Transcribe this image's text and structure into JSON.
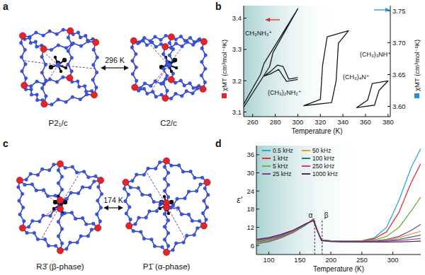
{
  "panel_labels": [
    "a",
    "b",
    "c",
    "d"
  ],
  "structures": [
    {
      "left": "P2₁/c",
      "right": "C2/c",
      "transition": "296 K"
    },
    {
      "left": "R3̄ (β-phase)",
      "right": "P1̄ (α-phase)",
      "transition": "174 K"
    }
  ],
  "chart_data": [
    {
      "type": "line",
      "x_label": "Temperature (K)",
      "y_label": "χMT (cm³mol⁻¹K)",
      "y2_label": "χMT (cm³mol⁻¹K)",
      "xlim": [
        252,
        382
      ],
      "xticks": [
        260,
        280,
        300,
        320,
        340,
        360,
        380
      ],
      "ylim": [
        3.085,
        3.44
      ],
      "yticks": [
        3.1,
        3.2,
        3.3,
        3.4
      ],
      "y2lim": [
        3.584,
        3.758
      ],
      "y2ticks": [
        {
          "value": 3.6,
          "label": "3.60"
        },
        {
          "value": 3.65,
          "label": "3.65"
        },
        {
          "value": 3.7,
          "label": "3.70"
        },
        {
          "value": 3.75,
          "label": "3.75"
        }
      ],
      "series": [
        {
          "name": "CH₃NH₃⁺",
          "color": "#1a1a1a",
          "x": [
            252,
            275,
            278,
            300,
            270,
            267,
            252
          ],
          "values": [
            3.115,
            3.245,
            3.29,
            3.43,
            3.255,
            3.22,
            3.125
          ]
        },
        {
          "name": "(CH₃)₂NH₂⁺",
          "color": "#1a1a1a",
          "x": [
            300,
            292,
            287,
            282,
            276,
            270,
            276,
            283,
            290,
            300
          ],
          "values": [
            3.21,
            3.205,
            3.245,
            3.25,
            3.23,
            3.215,
            3.222,
            3.236,
            3.198,
            3.204
          ]
        },
        {
          "name": "(CH₃)₄N⁺",
          "color": "#1a1a1a",
          "x": [
            305,
            330,
            334,
            336,
            345,
            326,
            322,
            320,
            305
          ],
          "values": [
            3.12,
            3.13,
            3.2,
            3.32,
            3.36,
            3.34,
            3.25,
            3.14,
            3.12
          ]
        },
        {
          "name": "(CH₃)₃NH⁺",
          "color": "#1a1a1a",
          "axis": "y2",
          "x": [
            352,
            368,
            372,
            380,
            366,
            362,
            352
          ],
          "values": [
            3.598,
            3.602,
            3.625,
            3.64,
            3.636,
            3.61,
            3.598
          ]
        }
      ]
    },
    {
      "type": "line",
      "x_label": "Temperature (K)",
      "y_label": "ε′",
      "xlim": [
        80,
        345
      ],
      "xticks": [
        100,
        150,
        200,
        250,
        300
      ],
      "ylim": [
        3,
        39
      ],
      "yticks": [
        6,
        12,
        18,
        24,
        30,
        36
      ],
      "legend": "upper left",
      "annotations": [
        {
          "text": "α",
          "x": 174
        },
        {
          "text": "β",
          "x": 186
        }
      ],
      "x": [
        80,
        100,
        120,
        140,
        160,
        172,
        178,
        185,
        200,
        220,
        250,
        270,
        290,
        310,
        330,
        345
      ],
      "series": [
        {
          "name": "0.5 kHz",
          "color": "#29a9e0",
          "values": [
            6.5,
            7.2,
            8.5,
            10.3,
            12.8,
            14.8,
            11,
            7.8,
            7.5,
            7.4,
            7.5,
            8.5,
            12,
            21,
            32,
            38
          ]
        },
        {
          "name": "1 kHz",
          "color": "#e0322a",
          "values": [
            6.6,
            7.3,
            8.6,
            10.4,
            12.9,
            14.8,
            11,
            7.8,
            7.5,
            7.4,
            7.5,
            8.2,
            10.5,
            17,
            27,
            33
          ]
        },
        {
          "name": "5 kHz",
          "color": "#6ab04c",
          "values": [
            6.8,
            7.5,
            8.8,
            10.5,
            13,
            14.7,
            11,
            7.8,
            7.5,
            7.4,
            7.4,
            7.8,
            9,
            12,
            17.5,
            22
          ]
        },
        {
          "name": "25 kHz",
          "color": "#7b3fa0",
          "values": [
            7.2,
            7.8,
            9,
            10.7,
            13,
            14.6,
            11,
            7.7,
            7.4,
            7.3,
            7.3,
            7.5,
            8,
            9,
            11,
            13
          ]
        },
        {
          "name": "50 kHz",
          "color": "#f39a2b",
          "values": [
            7.4,
            8,
            9.2,
            10.8,
            13.1,
            14.5,
            11,
            7.7,
            7.4,
            7.3,
            7.3,
            7.4,
            7.8,
            8.5,
            9.8,
            10.7
          ]
        },
        {
          "name": "100 kHz",
          "color": "#1a7a8c",
          "values": [
            7.6,
            8.2,
            9.3,
            10.9,
            13.1,
            14.4,
            11,
            7.7,
            7.4,
            7.3,
            7.3,
            7.4,
            7.6,
            8,
            8.8,
            9.4
          ]
        },
        {
          "name": "250 kHz",
          "color": "#d43c8a",
          "values": [
            7.8,
            8.4,
            9.5,
            11,
            13.2,
            14.3,
            11,
            7.6,
            7.3,
            7.2,
            7.2,
            7.3,
            7.4,
            7.6,
            8,
            8.3
          ]
        },
        {
          "name": "1000 kHz",
          "color": "#4b2a6b",
          "values": [
            8,
            8.6,
            9.7,
            11.1,
            13.2,
            14.2,
            11,
            7.6,
            7.3,
            7.2,
            7.1,
            7.1,
            7.1,
            7.2,
            7.3,
            7.4
          ]
        }
      ]
    }
  ]
}
